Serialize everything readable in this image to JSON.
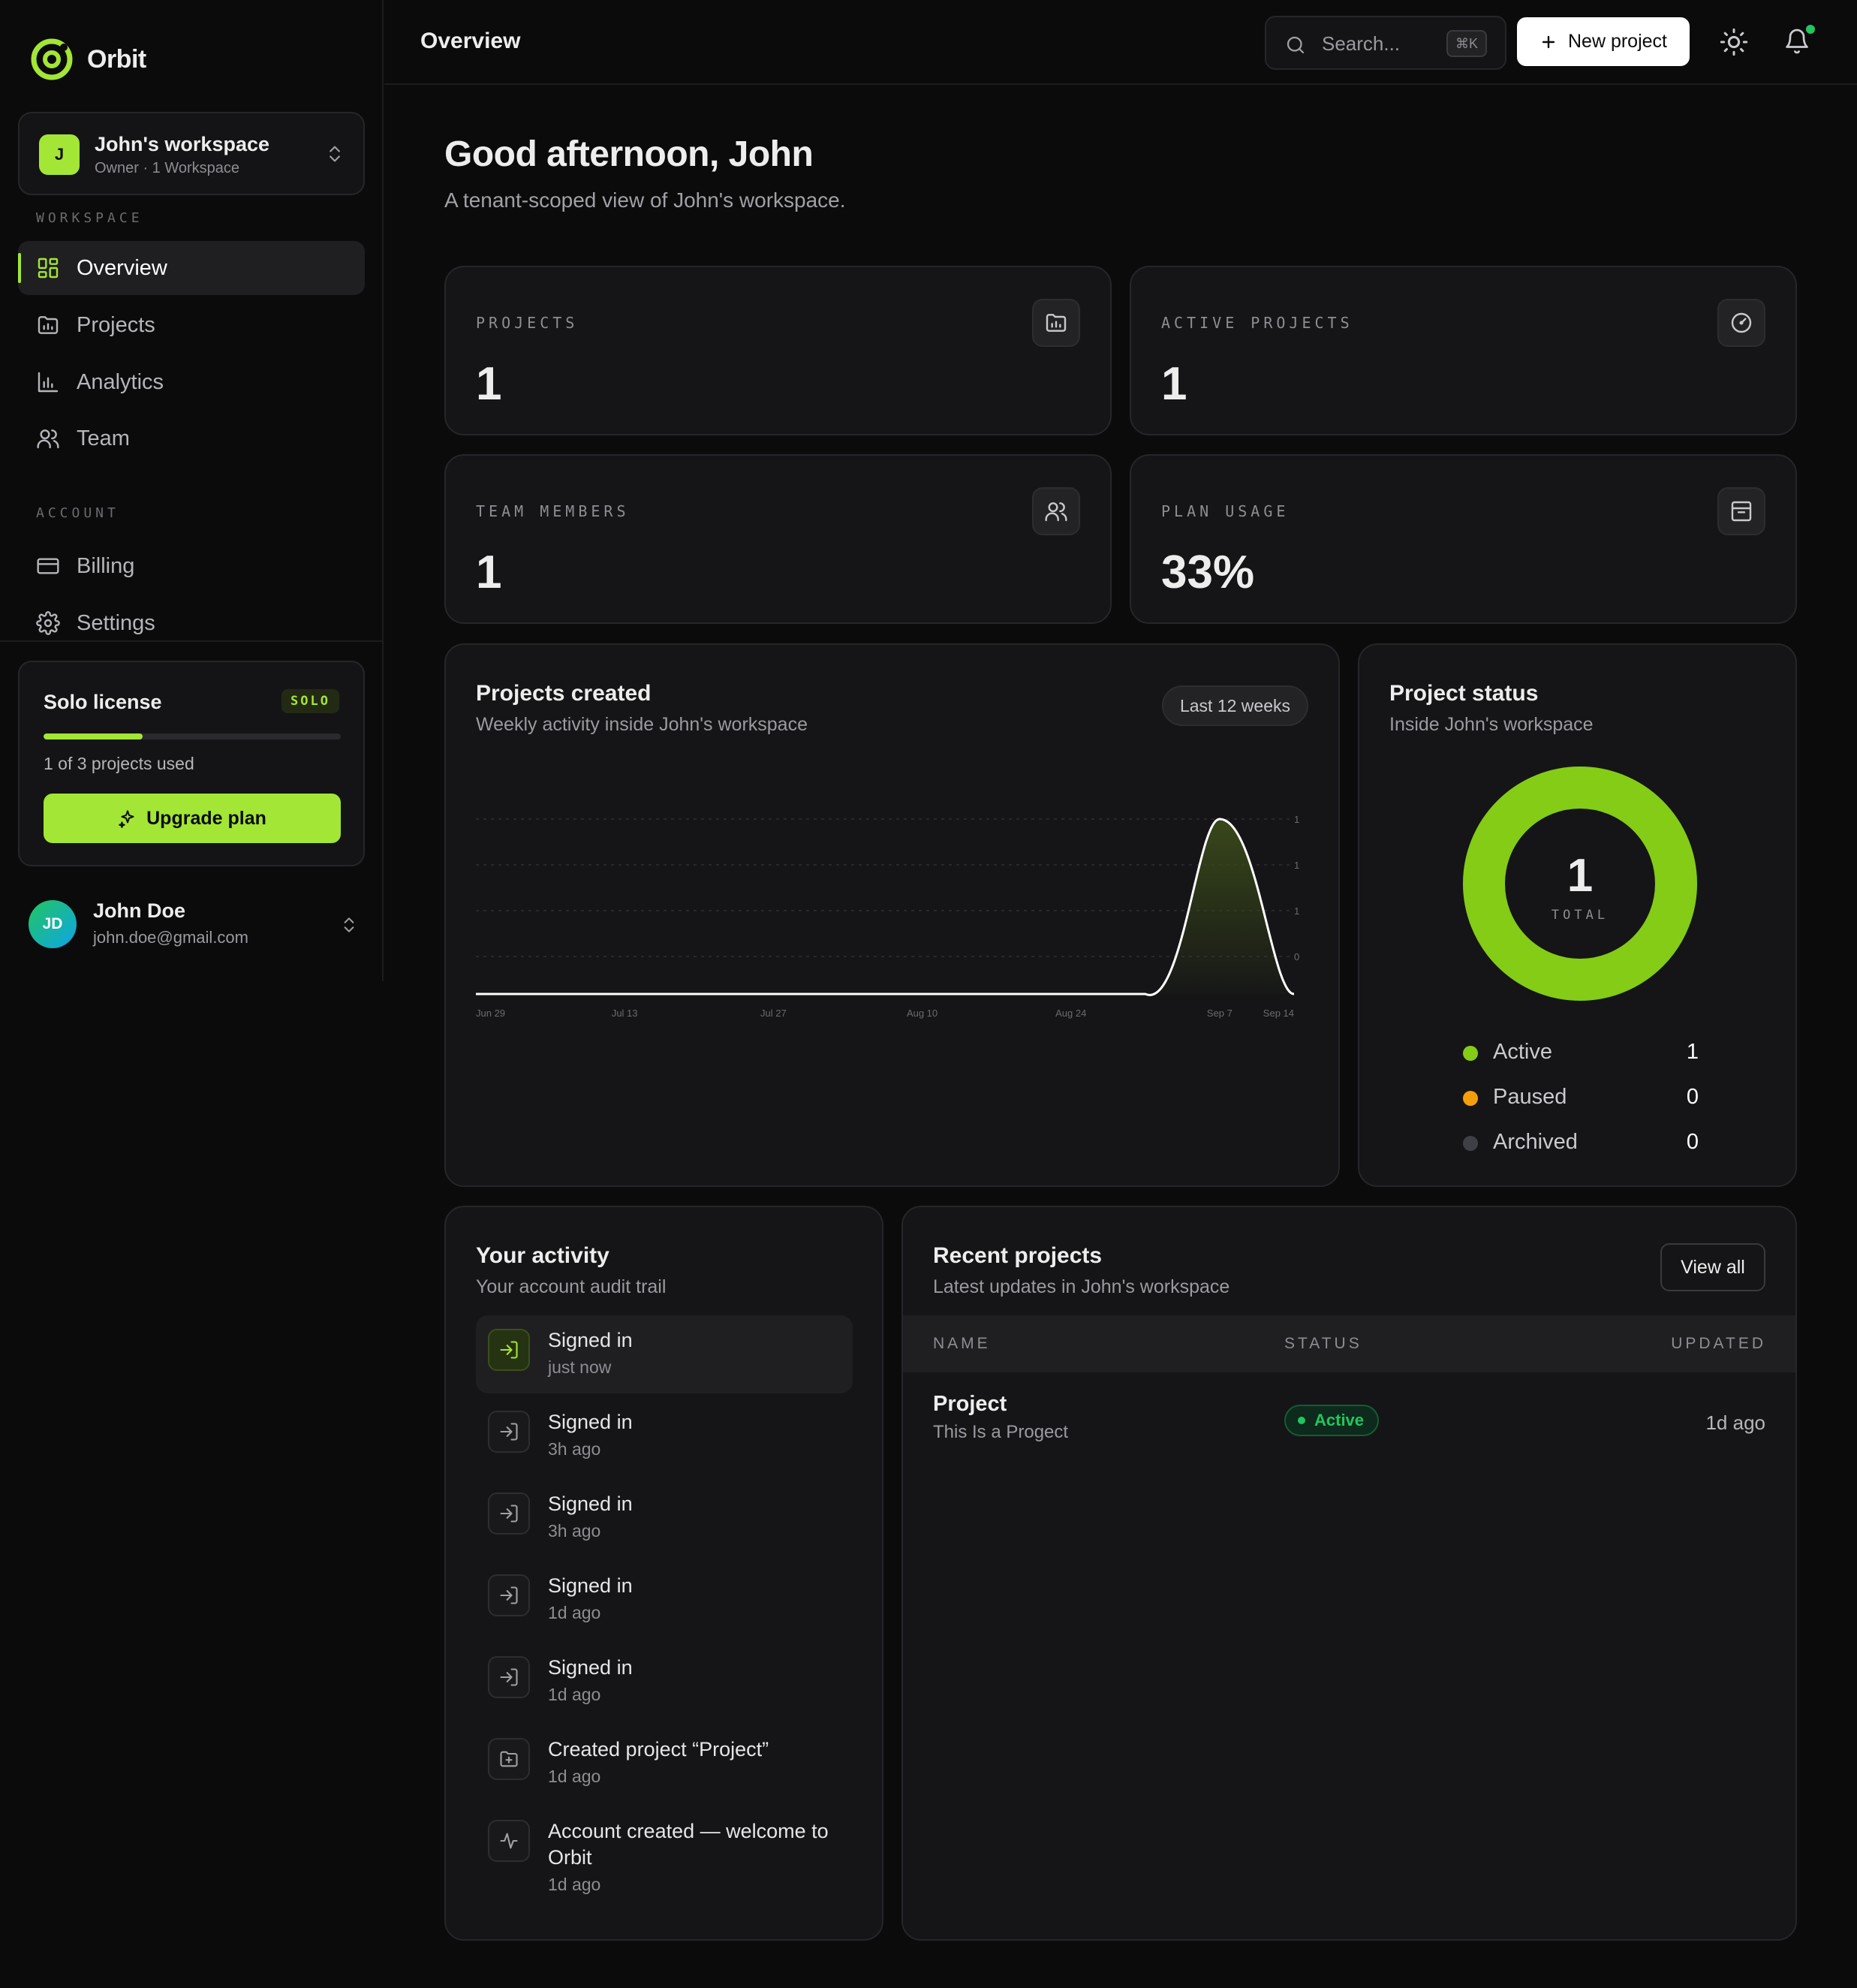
{
  "app": {
    "name": "Orbit"
  },
  "workspace": {
    "initial": "J",
    "name": "John's workspace",
    "meta": "Owner · 1 Workspace"
  },
  "sidebar": {
    "workspace_heading": "WORKSPACE",
    "account_heading": "ACCOUNT",
    "items": [
      {
        "label": "Overview",
        "icon": "layout-grid-icon"
      },
      {
        "label": "Projects",
        "icon": "folder-chart-icon"
      },
      {
        "label": "Analytics",
        "icon": "bar-chart-icon"
      },
      {
        "label": "Team",
        "icon": "users-icon"
      },
      {
        "label": "Billing",
        "icon": "credit-card-icon"
      },
      {
        "label": "Settings",
        "icon": "gear-icon"
      }
    ]
  },
  "license": {
    "title": "Solo license",
    "badge": "SOLO",
    "used": 1,
    "total": 3,
    "usage_text": "1 of 3 projects used",
    "upgrade_label": "Upgrade plan"
  },
  "user": {
    "initials": "JD",
    "name": "John Doe",
    "email": "john.doe@gmail.com"
  },
  "header": {
    "title": "Overview",
    "search_placeholder": "Search...",
    "search_shortcut": "⌘K",
    "new_project_label": "New project"
  },
  "greeting": {
    "title": "Good afternoon, John",
    "subtitle": "A tenant-scoped view of John's workspace."
  },
  "stats": [
    {
      "label": "PROJECTS",
      "value": "1",
      "icon": "folder-chart-icon"
    },
    {
      "label": "ACTIVE PROJECTS",
      "value": "1",
      "icon": "gauge-icon"
    },
    {
      "label": "TEAM MEMBERS",
      "value": "1",
      "icon": "users-icon"
    },
    {
      "label": "PLAN USAGE",
      "value": "33%",
      "icon": "archive-icon"
    }
  ],
  "projects_chart": {
    "title": "Projects created",
    "subtitle": "Weekly activity inside John's workspace",
    "range_label": "Last 12 weeks"
  },
  "chart_data": {
    "type": "area",
    "x": [
      "Jun 29",
      "Jul 6",
      "Jul 13",
      "Jul 20",
      "Jul 27",
      "Aug 3",
      "Aug 10",
      "Aug 17",
      "Aug 24",
      "Aug 31",
      "Sep 7",
      "Sep 14"
    ],
    "xticks": [
      "Jun 29",
      "Jul 13",
      "Jul 27",
      "Aug 10",
      "Aug 24",
      "Sep 7",
      "Sep 14"
    ],
    "values": [
      0,
      0,
      0,
      0,
      0,
      0,
      0,
      0,
      0,
      0,
      1,
      0
    ],
    "yticks": [
      "1",
      "1",
      "1",
      "0"
    ],
    "ylim": [
      0,
      1
    ],
    "grid": true,
    "line_color": "#ffffff",
    "fill_color": "#3a4a1a"
  },
  "project_status": {
    "title": "Project status",
    "subtitle": "Inside John's workspace",
    "total": "1",
    "total_label": "TOTAL",
    "items": [
      {
        "name": "Active",
        "value": 1,
        "color": "#84cc16"
      },
      {
        "name": "Paused",
        "value": 0,
        "color": "#f59e0b"
      },
      {
        "name": "Archived",
        "value": 0,
        "color": "#3f3f46"
      }
    ]
  },
  "activity": {
    "title": "Your activity",
    "subtitle": "Your account audit trail",
    "items": [
      {
        "text": "Signed in",
        "when": "just now",
        "icon": "sign-in-icon"
      },
      {
        "text": "Signed in",
        "when": "3h ago",
        "icon": "sign-in-icon"
      },
      {
        "text": "Signed in",
        "when": "3h ago",
        "icon": "sign-in-icon"
      },
      {
        "text": "Signed in",
        "when": "1d ago",
        "icon": "sign-in-icon"
      },
      {
        "text": "Signed in",
        "when": "1d ago",
        "icon": "sign-in-icon"
      },
      {
        "text": "Created project “Project”",
        "when": "1d ago",
        "icon": "folder-plus-icon"
      },
      {
        "text": "Account created — welcome to Orbit",
        "when": "1d ago",
        "icon": "activity-icon"
      }
    ]
  },
  "recent": {
    "title": "Recent projects",
    "subtitle": "Latest updates in John's workspace",
    "view_all": "View all",
    "columns": [
      "NAME",
      "STATUS",
      "UPDATED"
    ],
    "rows": [
      {
        "name": "Project",
        "description": "This Is a Progect",
        "status": "Active",
        "updated": "1d ago"
      }
    ]
  }
}
